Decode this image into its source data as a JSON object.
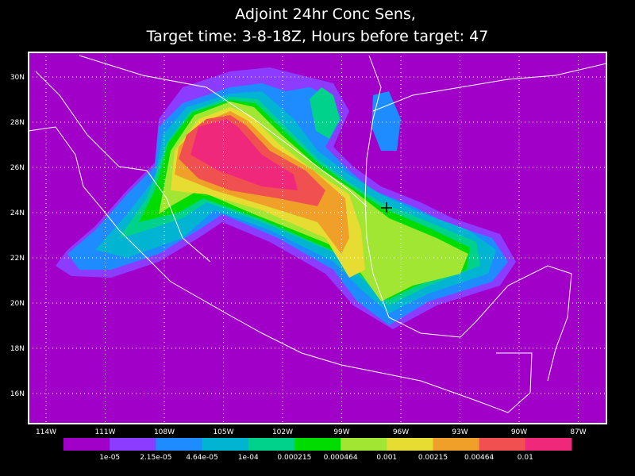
{
  "header": {
    "title": [
      "Adjoint 24hr Conc Sens,",
      "Target time: 3-8-18Z, Hours before target: 47"
    ]
  },
  "map": {
    "lat_labels": [
      "30N",
      "28N",
      "26N",
      "24N",
      "22N",
      "20N",
      "18N",
      "16N"
    ],
    "lon_labels": [
      "114W",
      "111W",
      "108W",
      "105W",
      "102W",
      "99W",
      "96W",
      "93W",
      "90W",
      "87W"
    ]
  },
  "colorbar": {
    "colors": [
      "#a000c8",
      "#8c3cff",
      "#1e8cff",
      "#00b4d2",
      "#00d28c",
      "#00dc00",
      "#a0e632",
      "#e6dc32",
      "#f0a028",
      "#f05050",
      "#f0287c"
    ],
    "labels": [
      "1e-05",
      "2.15e-05",
      "4.64e-05",
      "1e-04",
      "0.000215",
      "0.000464",
      "0.001",
      "0.00215",
      "0.00464",
      "0.01"
    ]
  }
}
